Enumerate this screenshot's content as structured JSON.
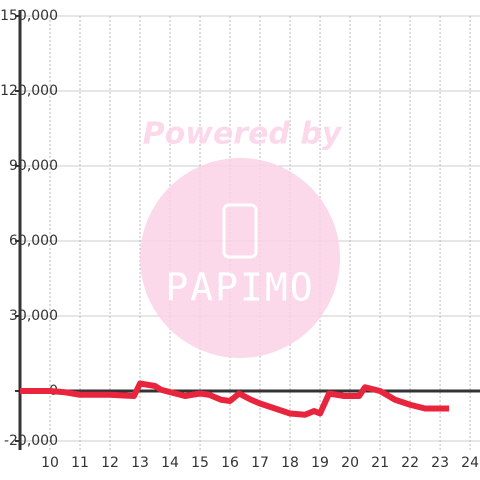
{
  "chart_data": {
    "type": "line",
    "x": [
      9.0,
      10.0,
      10.5,
      11.0,
      12.0,
      12.8,
      13.0,
      13.5,
      13.7,
      14.5,
      15.0,
      15.3,
      15.7,
      16.0,
      16.3,
      16.7,
      17.0,
      17.5,
      18.0,
      18.5,
      18.8,
      19.0,
      19.3,
      19.8,
      20.3,
      20.5,
      21.0,
      21.5,
      22.0,
      22.5,
      23.3
    ],
    "series": [
      {
        "color": "#e8253d",
        "values": [
          0,
          0,
          -500,
          -1500,
          -1500,
          -2000,
          3000,
          2000,
          500,
          -2000,
          -1000,
          -1500,
          -3500,
          -4000,
          -1000,
          -3500,
          -5000,
          -7000,
          -9000,
          -9500,
          -8000,
          -9000,
          -1000,
          -2000,
          -2000,
          1500,
          0,
          -3500,
          -5500,
          -7000,
          -7000
        ]
      }
    ],
    "xlim": [
      9,
      24.33
    ],
    "xticks": [
      10,
      11,
      12,
      13,
      14,
      15,
      16,
      17,
      18,
      19,
      20,
      21,
      22,
      23,
      24
    ],
    "ylim": [
      -20000,
      150000
    ],
    "yticks": [
      {
        "value": -20000,
        "label": "-20,000"
      },
      0,
      {
        "value": 30000,
        "label": "30,000"
      },
      {
        "value": 60000,
        "label": "60,000"
      },
      {
        "value": 90000,
        "label": "90,000"
      },
      {
        "value": 120000,
        "label": "120,000"
      },
      {
        "value": 150000,
        "label": "150,000"
      }
    ],
    "grid": true
  },
  "watermark": {
    "line1": "Powered by",
    "line2": "PAPIMO"
  }
}
